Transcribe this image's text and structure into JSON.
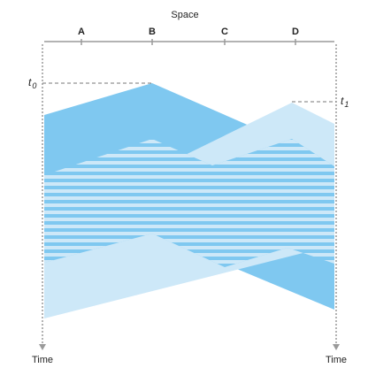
{
  "diagram": {
    "space_label": "Space",
    "nodes": [
      {
        "label": "A"
      },
      {
        "label": "B"
      },
      {
        "label": "C"
      },
      {
        "label": "D"
      }
    ],
    "time_left_label": "Time",
    "time_right_label": "Time",
    "t0": {
      "base": "t",
      "sub": "0"
    },
    "t1": {
      "base": "t",
      "sub": "1"
    }
  },
  "colors": {
    "dark_blue": "#7fc8f0",
    "light_blue": "#cde8f8",
    "axis_gray": "#9a9a9a",
    "dash_gray": "#777777"
  }
}
